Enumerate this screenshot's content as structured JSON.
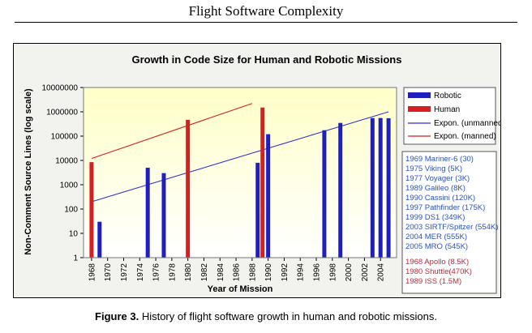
{
  "page": {
    "title": "Flight Software Complexity",
    "caption_label": "Figure 3.",
    "caption_text": " History of flight software growth in human and robotic missions."
  },
  "colors": {
    "robotic": "#1f1fbf",
    "human": "#d42020",
    "trend_unmanned": "#3232d8",
    "trend_manned": "#d42020",
    "plot_bg_top": "#ffffc8",
    "plot_bg_bottom": "#ffffff",
    "robotic_list_text": "#2a52c8",
    "human_list_text": "#c0283c"
  },
  "chart_data": {
    "type": "bar",
    "title": "Growth in Code Size for Human and Robotic Missions",
    "xlabel": "Year of Mission",
    "ylabel": "Non-Comment Source Lines (log scale)",
    "yscale": "log",
    "ylim": [
      1,
      10000000
    ],
    "xlim": [
      1967,
      2006
    ],
    "x_ticks": [
      1968,
      1970,
      1972,
      1974,
      1976,
      1978,
      1980,
      1982,
      1984,
      1986,
      1988,
      1990,
      1992,
      1994,
      1996,
      1998,
      2000,
      2002,
      2004
    ],
    "y_tick_labels": [
      "10000000",
      "1000000",
      "100000",
      "10000",
      "1000",
      "100",
      "10",
      "1"
    ],
    "y_tick_values": [
      10000000,
      1000000,
      100000,
      10000,
      1000,
      100,
      10,
      1
    ],
    "legend": [
      "Robotic",
      "Human",
      "Expon. (unmanned)",
      "Expon. (manned)"
    ],
    "series": [
      {
        "name": "Robotic",
        "points": [
          {
            "year": 1969,
            "value": 30
          },
          {
            "year": 1975,
            "value": 5000
          },
          {
            "year": 1977,
            "value": 3000
          },
          {
            "year": 1989,
            "value": 8000
          },
          {
            "year": 1990,
            "value": 120000
          },
          {
            "year": 1997,
            "value": 175000
          },
          {
            "year": 1999,
            "value": 349000
          },
          {
            "year": 2003,
            "value": 554000
          },
          {
            "year": 2004,
            "value": 555000
          },
          {
            "year": 2005,
            "value": 545000
          }
        ]
      },
      {
        "name": "Human",
        "points": [
          {
            "year": 1968,
            "value": 8500
          },
          {
            "year": 1980,
            "value": 470000
          },
          {
            "year": 1989,
            "value": 1500000
          }
        ]
      }
    ],
    "trendlines": [
      {
        "name": "Expon. (unmanned)",
        "start": {
          "year": 1968,
          "value": 200
        },
        "end": {
          "year": 2005,
          "value": 1000000
        }
      },
      {
        "name": "Expon. (manned)",
        "start": {
          "year": 1968,
          "value": 12000
        },
        "end": {
          "year": 1988,
          "value": 2200000
        }
      }
    ],
    "robotic_missions": [
      "1969 Mariner-6  (30)",
      "1975 Viking  (5K)",
      "1977 Voyager (3K)",
      "1989 Galileo  (8K)",
      "1990 Cassini  (120K)",
      "1997 Pathfinder (175K)",
      "1999 DS1  (349K)",
      "2003 SIRTF/Spitzer  (554K)",
      "2004 MER  (555K)",
      "2005 MRO  (545K)"
    ],
    "human_missions": [
      "1968 Apollo  (8.5K)",
      "1980 Shuttle(470K)",
      "1989 ISS  (1.5M)"
    ]
  }
}
